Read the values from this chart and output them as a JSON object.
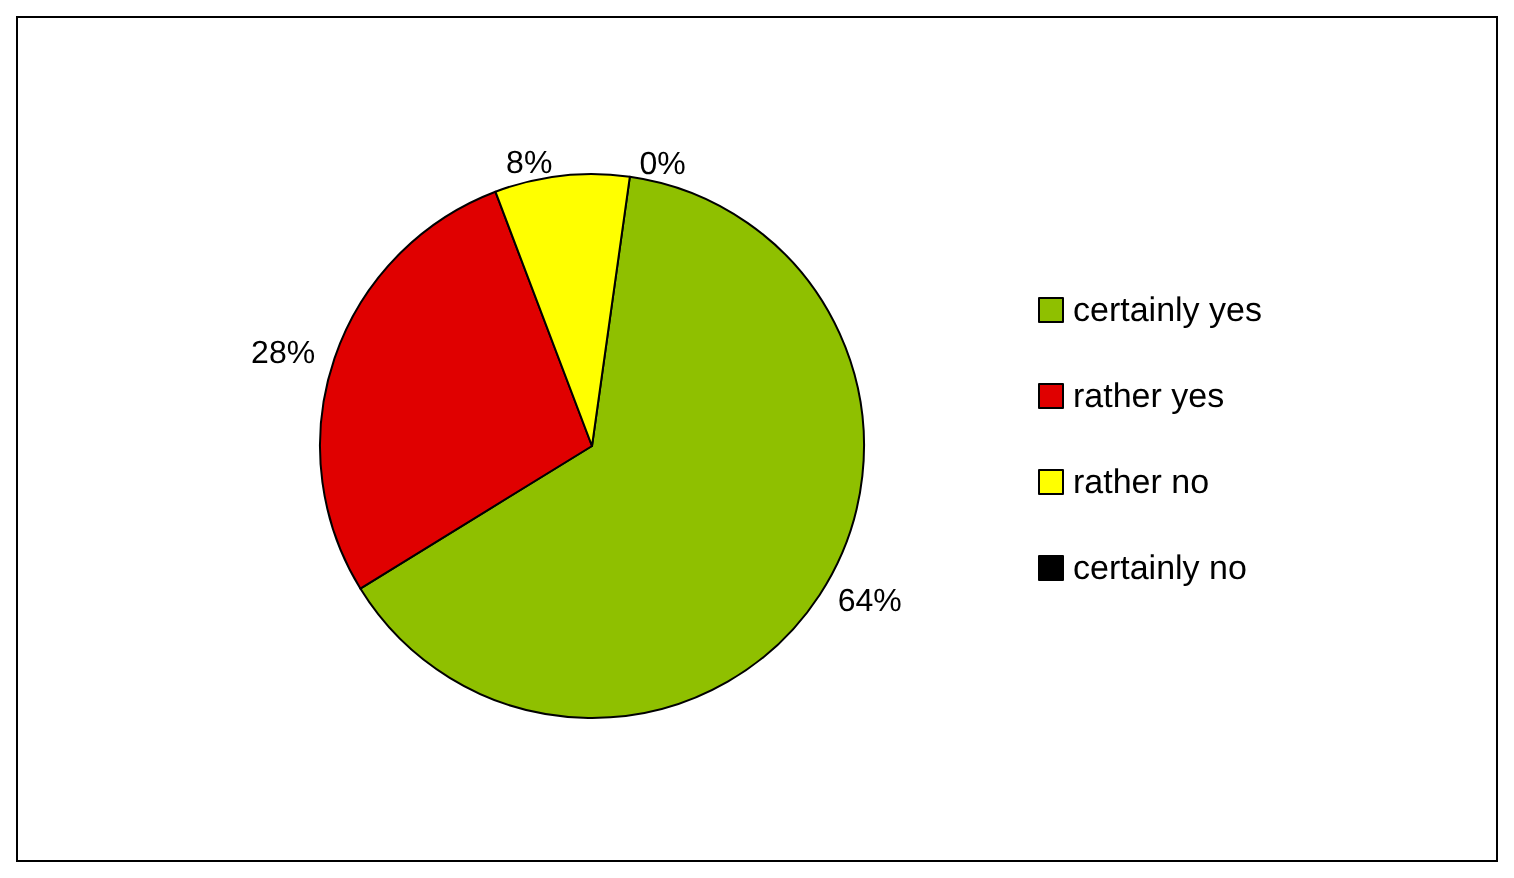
{
  "chart_data": {
    "type": "pie",
    "categories": [
      "certainly yes",
      "rather yes",
      "rather no",
      "certainly no"
    ],
    "values": [
      64,
      28,
      8,
      0
    ],
    "value_labels": [
      "64%",
      "28%",
      "8%",
      "0%"
    ],
    "colors": [
      "#8fc000",
      "#e00000",
      "#ffff00",
      "#000000"
    ],
    "legend": "right"
  }
}
